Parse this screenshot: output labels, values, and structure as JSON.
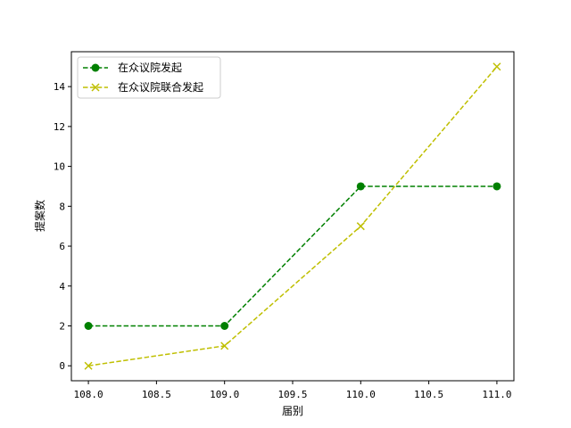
{
  "chart_data": {
    "type": "line",
    "title": "",
    "xlabel": "届别",
    "ylabel": "提案数",
    "xlim": [
      107.875,
      111.125
    ],
    "ylim": [
      -0.75,
      15.75
    ],
    "xticks": [
      108.0,
      108.5,
      109.0,
      109.5,
      110.0,
      110.5,
      111.0
    ],
    "xtick_labels": [
      "108.0",
      "108.5",
      "109.0",
      "109.5",
      "110.0",
      "110.5",
      "111.0"
    ],
    "yticks": [
      0,
      2,
      4,
      6,
      8,
      10,
      12,
      14
    ],
    "ytick_labels": [
      "0",
      "2",
      "4",
      "6",
      "8",
      "10",
      "12",
      "14"
    ],
    "grid": false,
    "legend_position": "top-left",
    "x": [
      108,
      109,
      110,
      111
    ],
    "series": [
      {
        "name": "在众议院发起",
        "values": [
          2,
          2,
          9,
          9
        ],
        "color": "#008000",
        "marker": "circle",
        "linestyle": "dashed"
      },
      {
        "name": "在众议院联合发起",
        "values": [
          0,
          1,
          7,
          15
        ],
        "color": "#bfbf00",
        "marker": "x",
        "linestyle": "dashed"
      }
    ]
  }
}
